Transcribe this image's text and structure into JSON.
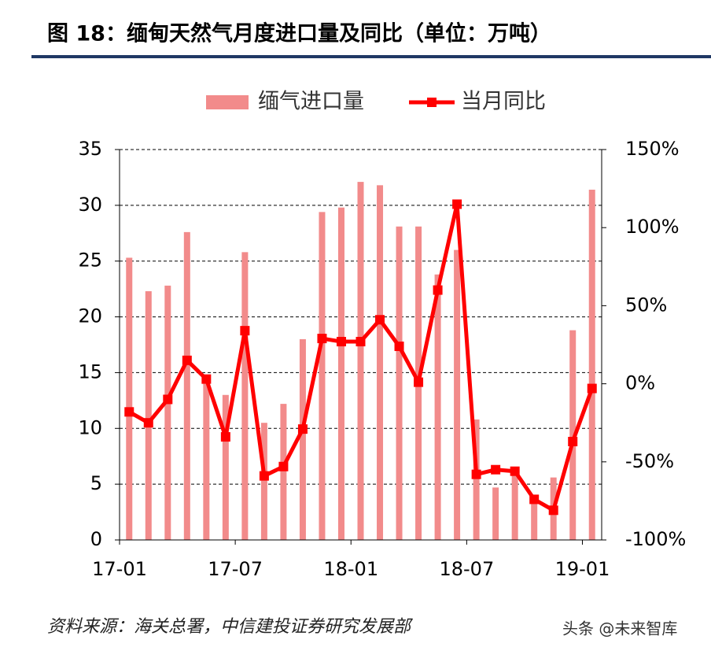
{
  "chart_data": {
    "type": "bar-line",
    "title": "图 18：缅甸天然气月度进口量及同比（单位：万吨）",
    "source": "资料来源：海关总署，中信建投证券研究发展部",
    "watermark": "头条 @未来智库",
    "categories": [
      "17-01",
      null,
      null,
      null,
      null,
      null,
      "17-07",
      null,
      null,
      null,
      null,
      null,
      "18-01",
      null,
      null,
      null,
      null,
      null,
      "18-07",
      null,
      null,
      null,
      null,
      null,
      "19-01"
    ],
    "series": [
      {
        "name": "缅气进口量",
        "type": "bar",
        "color": "#f28b8b",
        "values": [
          25.3,
          22.3,
          22.8,
          27.6,
          14.0,
          13.0,
          25.8,
          10.5,
          12.2,
          18.0,
          29.4,
          29.8,
          32.1,
          31.8,
          28.1,
          28.1,
          23.8,
          26.0,
          10.8,
          4.7,
          6.0,
          3.5,
          5.6,
          18.8,
          31.4
        ]
      },
      {
        "name": "当月同比",
        "type": "line",
        "axis": "y2",
        "color": "#ff0000",
        "values": [
          -18,
          -25,
          -10,
          15,
          3,
          -34,
          34,
          -59,
          -53,
          -29,
          29,
          27,
          27,
          41,
          24,
          1,
          60,
          115,
          -58,
          -55,
          -56,
          -74,
          -81,
          -37,
          -3
        ]
      }
    ],
    "ylim": [
      0,
      35
    ],
    "yticks": [
      0,
      5,
      10,
      15,
      20,
      25,
      30,
      35
    ],
    "y2lim": [
      -100,
      150
    ],
    "y2ticks": [
      {
        "value": -100,
        "label": "-100%"
      },
      {
        "value": -50,
        "label": "-50%"
      },
      {
        "value": 0,
        "label": "0%"
      },
      {
        "value": 50,
        "label": "50%"
      },
      {
        "value": 100,
        "label": "100%"
      },
      {
        "value": 150,
        "label": "150%"
      }
    ],
    "grid": true
  }
}
